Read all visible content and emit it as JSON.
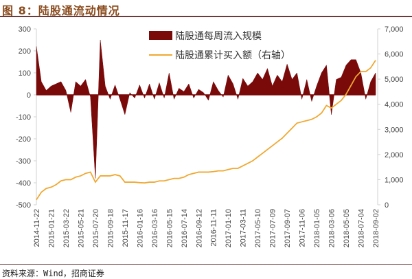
{
  "title": "图 8：陆股通流动情况",
  "source": "资料来源：Wind，招商证券",
  "chart_data": {
    "type": "area+line",
    "title": "图 8：陆股通流动情况",
    "legend_placement": "top-center",
    "grid": false,
    "left_axis": {
      "range": [
        -500,
        300
      ],
      "ticks": [
        "300",
        "200",
        "100",
        "0",
        "-100",
        "-200",
        "-300",
        "-400",
        "-500"
      ]
    },
    "right_axis": {
      "range": [
        0,
        7000
      ],
      "ticks": [
        "7,000",
        "6,000",
        "5,000",
        "4,000",
        "3,000",
        "2,000",
        "1,000",
        "0"
      ]
    },
    "x_ticks": [
      "2014-11-22",
      "2015-01-21",
      "2015-03-22",
      "2015-05-21",
      "2015-07-20",
      "2015-09-18",
      "2015-11-17",
      "2016-01-16",
      "2016-03-16",
      "2016-05-15",
      "2016-07-14",
      "2016-09-12",
      "2016-11-11",
      "2017-01-10",
      "2017-03-11",
      "2017-05-10",
      "2017-07-09",
      "2017-09-07",
      "2017-11-06",
      "2018-01-05",
      "2018-03-06",
      "2018-05-05",
      "2018-07-04",
      "2018-09-02"
    ],
    "series": [
      {
        "name": "陆股通每周流入规模",
        "axis": "left",
        "kind": "area",
        "color": "#7a0a0a",
        "values": [
          220,
          60,
          20,
          40,
          50,
          60,
          20,
          -80,
          60,
          40,
          70,
          -10,
          -380,
          250,
          40,
          -20,
          45,
          -20,
          -90,
          10,
          -15,
          45,
          -15,
          50,
          -20,
          55,
          -15,
          100,
          -20,
          30,
          15,
          50,
          -15,
          25,
          10,
          -25,
          60,
          20,
          -10,
          90,
          50,
          -20,
          75,
          40,
          60,
          100,
          70,
          120,
          40,
          90,
          60,
          140,
          70,
          100,
          -20,
          70,
          -30,
          40,
          100,
          135,
          -90,
          70,
          80,
          135,
          160,
          160,
          100,
          -20,
          60,
          100
        ]
      },
      {
        "name": "陆股通累计买入额（右轴）",
        "axis": "right",
        "kind": "line",
        "color": "#f0a830",
        "values": [
          200,
          500,
          650,
          700,
          800,
          950,
          1000,
          1000,
          1100,
          1150,
          1250,
          1300,
          900,
          1150,
          1150,
          1150,
          1200,
          1150,
          900,
          900,
          900,
          880,
          870,
          900,
          900,
          950,
          950,
          1000,
          1050,
          1050,
          1100,
          1200,
          1250,
          1300,
          1300,
          1300,
          1320,
          1350,
          1350,
          1400,
          1450,
          1450,
          1550,
          1650,
          1750,
          1900,
          2050,
          2200,
          2350,
          2500,
          2650,
          2850,
          3050,
          3250,
          3300,
          3350,
          3400,
          3500,
          3650,
          3950,
          3850,
          4000,
          4150,
          4400,
          4750,
          5100,
          5300,
          5300,
          5450,
          5750
        ]
      }
    ]
  }
}
